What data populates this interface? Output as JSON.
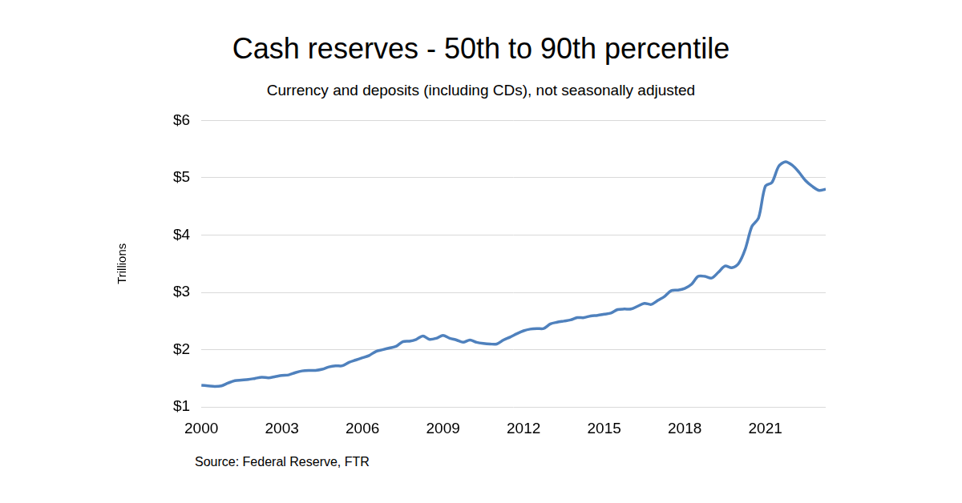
{
  "chart_data": {
    "type": "line",
    "title": "Cash reserves - 50th to 90th percentile",
    "subtitle": "Currency and deposits (including CDs), not seasonally adjusted",
    "y_label": "Trillions",
    "annotations": [
      "Source: Federal Reserve, FTR"
    ],
    "categories": [
      "2000",
      null,
      null,
      null,
      null,
      null,
      null,
      null,
      null,
      null,
      null,
      null,
      "2003",
      null,
      null,
      null,
      null,
      null,
      null,
      null,
      null,
      null,
      null,
      null,
      "2006",
      null,
      null,
      null,
      null,
      null,
      null,
      null,
      null,
      null,
      null,
      null,
      "2009",
      null,
      null,
      null,
      null,
      null,
      null,
      null,
      null,
      null,
      null,
      null,
      "2012",
      null,
      null,
      null,
      null,
      null,
      null,
      null,
      null,
      null,
      null,
      null,
      "2015",
      null,
      null,
      null,
      null,
      null,
      null,
      null,
      null,
      null,
      null,
      null,
      "2018",
      null,
      null,
      null,
      null,
      null,
      null,
      null,
      null,
      null,
      null,
      null,
      "2021",
      null,
      null,
      null,
      null,
      null,
      null,
      null,
      null,
      null
    ],
    "values": [
      1.38,
      1.37,
      1.36,
      1.37,
      1.42,
      1.46,
      1.47,
      1.48,
      1.5,
      1.52,
      1.51,
      1.53,
      1.55,
      1.56,
      1.6,
      1.63,
      1.64,
      1.64,
      1.66,
      1.7,
      1.72,
      1.72,
      1.78,
      1.82,
      1.86,
      1.9,
      1.97,
      2.0,
      2.03,
      2.06,
      2.14,
      2.15,
      2.18,
      2.24,
      2.18,
      2.2,
      2.25,
      2.2,
      2.17,
      2.13,
      2.17,
      2.13,
      2.11,
      2.1,
      2.1,
      2.17,
      2.22,
      2.28,
      2.33,
      2.36,
      2.37,
      2.37,
      2.45,
      2.48,
      2.5,
      2.52,
      2.56,
      2.56,
      2.59,
      2.6,
      2.62,
      2.64,
      2.7,
      2.71,
      2.71,
      2.76,
      2.81,
      2.79,
      2.86,
      2.93,
      3.03,
      3.04,
      3.07,
      3.14,
      3.28,
      3.28,
      3.25,
      3.35,
      3.46,
      3.43,
      3.5,
      3.75,
      4.15,
      4.3,
      4.85,
      4.92,
      5.2,
      5.28,
      5.22,
      5.1,
      4.95,
      4.85,
      4.78,
      4.8
    ],
    "color": "#4f81bd",
    "ylim": [
      1,
      6
    ],
    "yticks": [
      {
        "value": 1,
        "label": "$1"
      },
      {
        "value": 2,
        "label": "$2"
      },
      {
        "value": 3,
        "label": "$3"
      },
      {
        "value": 4,
        "label": "$4"
      },
      {
        "value": 5,
        "label": "$5"
      },
      {
        "value": 6,
        "label": "$6"
      }
    ],
    "grid": true
  }
}
